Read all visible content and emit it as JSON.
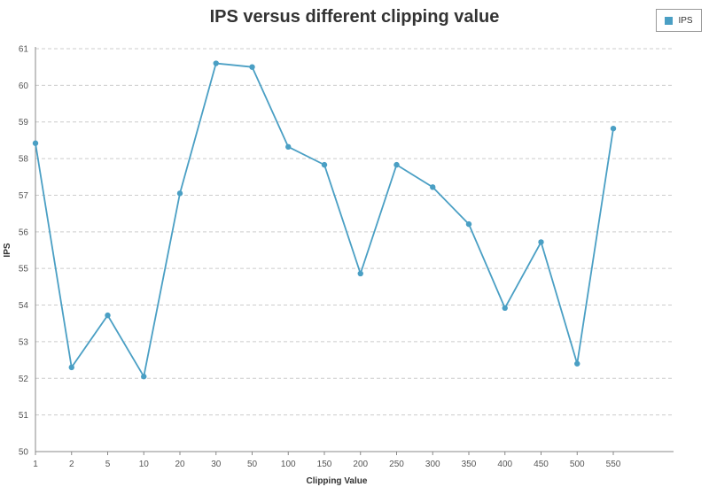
{
  "chart_data": {
    "type": "line",
    "title": "IPS versus different clipping value",
    "xlabel": "Clipping Value",
    "ylabel": "IPS",
    "categories": [
      "1",
      "2",
      "5",
      "10",
      "20",
      "30",
      "50",
      "100",
      "150",
      "200",
      "250",
      "300",
      "350",
      "400",
      "450",
      "500",
      "550"
    ],
    "series": [
      {
        "name": "IPS",
        "color": "#4a9fc4",
        "values": [
          58.42,
          52.3,
          53.72,
          52.05,
          57.05,
          60.6,
          60.5,
          58.32,
          57.83,
          54.86,
          57.83,
          57.22,
          56.21,
          53.92,
          55.72,
          52.4,
          58.82
        ]
      }
    ],
    "ylim": [
      50,
      61
    ],
    "yticks": [
      "50",
      "51",
      "52",
      "53",
      "54",
      "55",
      "56",
      "57",
      "58",
      "59",
      "60",
      "61"
    ],
    "grid": "horizontal-dashed",
    "legend_position": "top-right"
  }
}
